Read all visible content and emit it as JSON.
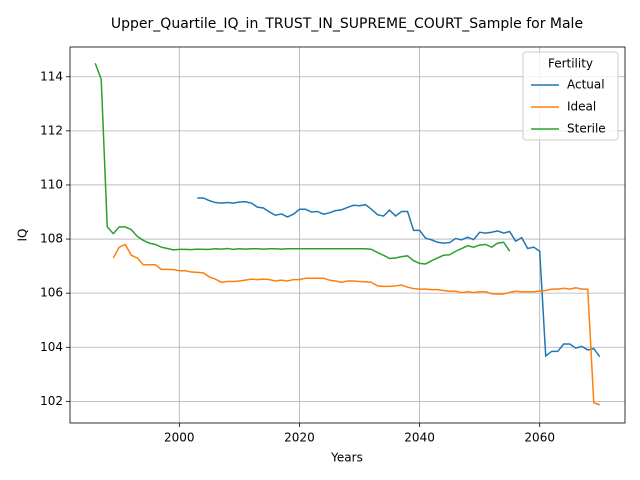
{
  "chart_data": {
    "type": "line",
    "title": "Upper_Quartile_IQ_in_TRUST_IN_SUPREME_COURT_Sample for Male",
    "xlabel": "Years",
    "ylabel": "IQ",
    "legend_title": "Fertility",
    "legend_loc": "upper right",
    "grid": true,
    "xlim": [
      1981.8,
      2074.2
    ],
    "ylim": [
      101.2,
      115.1
    ],
    "xticks": [
      2000,
      2020,
      2040,
      2060
    ],
    "yticks": [
      102,
      104,
      106,
      108,
      110,
      112,
      114
    ],
    "x": [
      1986,
      1987,
      1988,
      1989,
      1990,
      1991,
      1992,
      1993,
      1994,
      1995,
      1996,
      1997,
      1998,
      1999,
      2000,
      2001,
      2002,
      2003,
      2004,
      2005,
      2006,
      2007,
      2008,
      2009,
      2010,
      2011,
      2012,
      2013,
      2014,
      2015,
      2016,
      2017,
      2018,
      2019,
      2020,
      2021,
      2022,
      2023,
      2024,
      2025,
      2026,
      2027,
      2028,
      2029,
      2030,
      2031,
      2032,
      2033,
      2034,
      2035,
      2036,
      2037,
      2038,
      2039,
      2040,
      2041,
      2042,
      2043,
      2044,
      2045,
      2046,
      2047,
      2048,
      2049,
      2050,
      2051,
      2052,
      2053,
      2054,
      2055,
      2056,
      2057,
      2058,
      2059,
      2060,
      2061,
      2062,
      2063,
      2064,
      2065,
      2066,
      2067,
      2068,
      2069,
      2070
    ],
    "series": [
      {
        "name": "Actual",
        "color": "#1f77b4",
        "values": [
          null,
          null,
          null,
          null,
          null,
          null,
          null,
          null,
          null,
          null,
          null,
          null,
          null,
          null,
          null,
          null,
          null,
          109.52,
          109.52,
          109.42,
          109.35,
          109.33,
          109.35,
          109.33,
          109.37,
          109.38,
          109.33,
          109.18,
          109.15,
          109.0,
          108.88,
          108.93,
          108.82,
          108.92,
          109.1,
          109.1,
          109.0,
          109.02,
          108.92,
          108.97,
          109.05,
          109.08,
          109.17,
          109.25,
          109.23,
          109.27,
          109.1,
          108.9,
          108.85,
          109.07,
          108.85,
          109.02,
          109.02,
          108.32,
          108.32,
          108.03,
          107.97,
          107.88,
          107.85,
          107.87,
          108.02,
          107.97,
          108.07,
          107.98,
          108.25,
          108.22,
          108.25,
          108.3,
          108.22,
          108.28,
          107.92,
          108.05,
          107.65,
          107.7,
          107.55,
          103.68,
          103.85,
          103.85,
          104.12,
          104.12,
          103.97,
          104.03,
          103.9,
          103.95,
          103.65
        ]
      },
      {
        "name": "Ideal",
        "color": "#ff7f0e",
        "values": [
          null,
          null,
          null,
          107.3,
          107.7,
          107.8,
          107.4,
          107.3,
          107.05,
          107.05,
          107.05,
          106.88,
          106.88,
          106.87,
          106.83,
          106.83,
          106.78,
          106.77,
          106.75,
          106.6,
          106.52,
          106.4,
          106.43,
          106.43,
          106.45,
          106.48,
          106.52,
          106.5,
          106.52,
          106.5,
          106.45,
          106.48,
          106.45,
          106.5,
          106.5,
          106.55,
          106.55,
          106.55,
          106.55,
          106.48,
          106.45,
          106.4,
          106.45,
          106.45,
          106.43,
          106.42,
          106.4,
          106.27,
          106.25,
          106.25,
          106.27,
          106.3,
          106.22,
          106.17,
          106.15,
          106.15,
          106.13,
          106.13,
          106.1,
          106.07,
          106.07,
          106.02,
          106.05,
          106.02,
          106.05,
          106.05,
          105.98,
          105.97,
          105.97,
          106.03,
          106.07,
          106.05,
          106.05,
          106.05,
          106.08,
          106.1,
          106.15,
          106.15,
          106.18,
          106.15,
          106.2,
          106.15,
          106.15,
          101.95,
          101.87
        ]
      },
      {
        "name": "Sterile",
        "color": "#2ca02c",
        "values": [
          114.5,
          113.9,
          108.45,
          108.2,
          108.45,
          108.45,
          108.35,
          108.1,
          107.95,
          107.85,
          107.8,
          107.7,
          107.65,
          107.6,
          107.62,
          107.62,
          107.61,
          107.63,
          107.62,
          107.62,
          107.64,
          107.63,
          107.65,
          107.62,
          107.64,
          107.63,
          107.64,
          107.64,
          107.63,
          107.64,
          107.64,
          107.63,
          107.64,
          107.64,
          107.64,
          107.64,
          107.64,
          107.64,
          107.64,
          107.64,
          107.64,
          107.64,
          107.64,
          107.64,
          107.64,
          107.64,
          107.62,
          107.5,
          107.4,
          107.28,
          107.3,
          107.35,
          107.38,
          107.2,
          107.1,
          107.08,
          107.2,
          107.3,
          107.4,
          107.42,
          107.55,
          107.65,
          107.75,
          107.7,
          107.78,
          107.8,
          107.7,
          107.85,
          107.88,
          107.55,
          null,
          null,
          null,
          null,
          null,
          null,
          null,
          null,
          null,
          null,
          null,
          null,
          null,
          null,
          null
        ]
      }
    ]
  }
}
